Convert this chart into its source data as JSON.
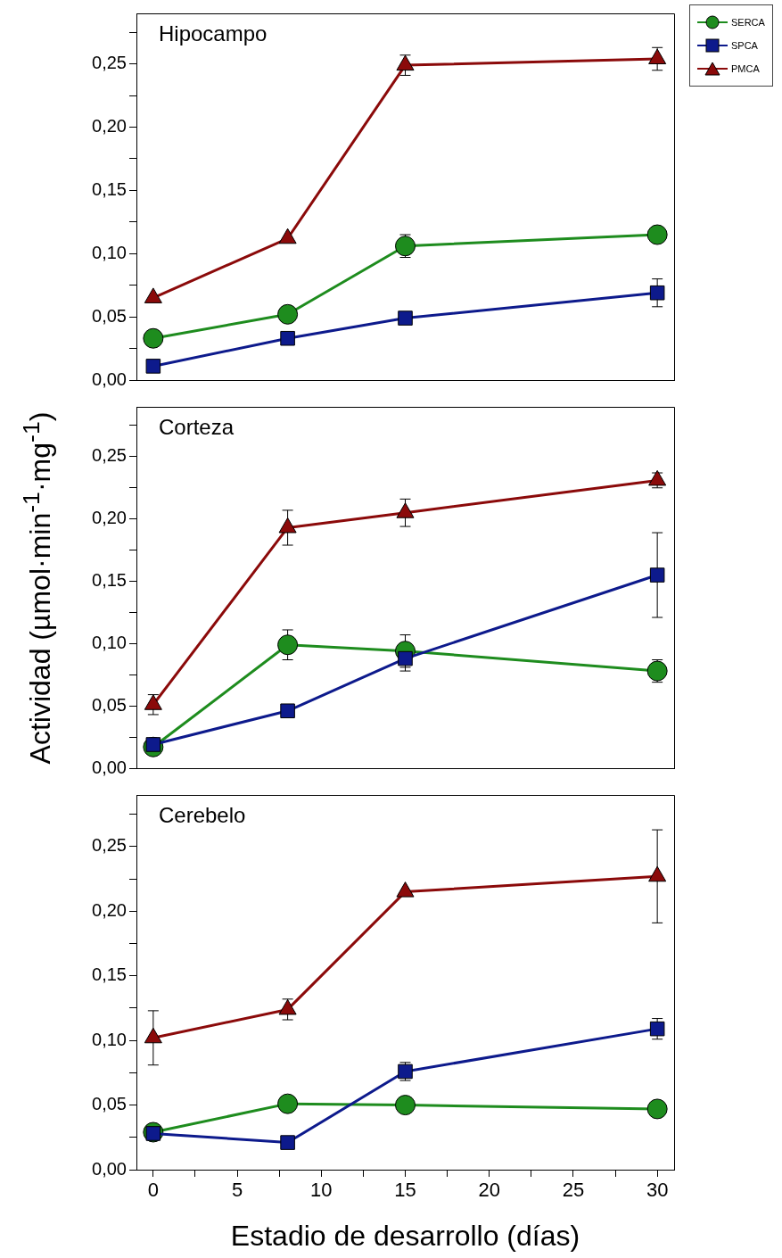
{
  "chart_data": [
    {
      "type": "line",
      "title": "Hipocampo",
      "x": [
        0,
        8,
        15,
        30
      ],
      "xlim": [
        -1,
        31
      ],
      "ylim": [
        0,
        0.29
      ],
      "yticks": [
        {
          "value": 0,
          "label": "0,00"
        },
        {
          "value": 0.025,
          "label": null
        },
        {
          "value": 0.05,
          "label": "0,05"
        },
        {
          "value": 0.075,
          "label": null
        },
        {
          "value": 0.1,
          "label": "0,10"
        },
        {
          "value": 0.125,
          "label": null
        },
        {
          "value": 0.15,
          "label": "0,15"
        },
        {
          "value": 0.175,
          "label": null
        },
        {
          "value": 0.2,
          "label": "0,20"
        },
        {
          "value": 0.225,
          "label": null
        },
        {
          "value": 0.25,
          "label": "0,25"
        },
        {
          "value": 0.275,
          "label": null
        }
      ],
      "tick_labels": "y",
      "legend": "top right",
      "line_style": "solid",
      "series": [
        {
          "name": "SERCA",
          "color": "#1e8c1e",
          "marker": "circle",
          "values": [
            0.033,
            0.052,
            0.106,
            0.115
          ],
          "errors": [
            null,
            null,
            0.009,
            null
          ]
        },
        {
          "name": "SPCA",
          "color": "#0d1a8c",
          "marker": "square",
          "values": [
            0.011,
            0.033,
            0.049,
            0.069
          ],
          "errors": [
            null,
            null,
            null,
            0.011
          ]
        },
        {
          "name": "PMCA",
          "color": "#8b0a0a",
          "marker": "triangle",
          "values": [
            0.065,
            0.112,
            0.249,
            0.254
          ],
          "errors": [
            null,
            null,
            0.008,
            0.009
          ]
        }
      ]
    },
    {
      "type": "line",
      "title": "Corteza",
      "ylabel": "Actividad (µmol·min$^{-1}$·mg$^{-1}$)",
      "x": [
        0,
        8,
        15,
        30
      ],
      "xlim": [
        -1,
        31
      ],
      "ylim": [
        0,
        0.29
      ],
      "yticks": [
        {
          "value": 0,
          "label": "0,00"
        },
        {
          "value": 0.025,
          "label": null
        },
        {
          "value": 0.05,
          "label": "0,05"
        },
        {
          "value": 0.075,
          "label": null
        },
        {
          "value": 0.1,
          "label": "0,10"
        },
        {
          "value": 0.125,
          "label": null
        },
        {
          "value": 0.15,
          "label": "0,15"
        },
        {
          "value": 0.175,
          "label": null
        },
        {
          "value": 0.2,
          "label": "0,20"
        },
        {
          "value": 0.225,
          "label": null
        },
        {
          "value": 0.25,
          "label": "0,25"
        },
        {
          "value": 0.275,
          "label": null
        }
      ],
      "tick_labels": "y",
      "line_style": "solid",
      "series": [
        {
          "color": "#1e8c1e",
          "marker": "circle",
          "values": [
            0.017,
            0.099,
            0.094,
            0.078
          ],
          "errors": [
            null,
            0.012,
            0.013,
            0.009
          ]
        },
        {
          "color": "#0d1a8c",
          "marker": "square",
          "values": [
            0.019,
            0.046,
            0.088,
            0.155
          ],
          "errors": [
            null,
            null,
            0.01,
            0.034
          ]
        },
        {
          "color": "#8b0a0a",
          "marker": "triangle",
          "values": [
            0.051,
            0.193,
            0.205,
            0.231
          ],
          "errors": [
            0.008,
            0.014,
            0.011,
            0.006
          ]
        }
      ]
    },
    {
      "type": "line",
      "title": "Cerebelo",
      "xlabel": "Estadio de desarrollo (días)",
      "x": [
        0,
        8,
        15,
        30
      ],
      "xlim": [
        -1,
        31
      ],
      "xticks": [
        {
          "value": 0,
          "label": "0"
        },
        {
          "value": 2.5,
          "label": null
        },
        {
          "value": 5,
          "label": "5"
        },
        {
          "value": 7.5,
          "label": null
        },
        {
          "value": 10,
          "label": "10"
        },
        {
          "value": 12.5,
          "label": null
        },
        {
          "value": 15,
          "label": "15"
        },
        {
          "value": 17.5,
          "label": null
        },
        {
          "value": 20,
          "label": "20"
        },
        {
          "value": 22.5,
          "label": null
        },
        {
          "value": 25,
          "label": "25"
        },
        {
          "value": 27.5,
          "label": null
        },
        {
          "value": 30,
          "label": "30"
        }
      ],
      "ylim": [
        0,
        0.29
      ],
      "yticks": [
        {
          "value": 0,
          "label": "0,00"
        },
        {
          "value": 0.025,
          "label": null
        },
        {
          "value": 0.05,
          "label": "0,05"
        },
        {
          "value": 0.075,
          "label": null
        },
        {
          "value": 0.1,
          "label": "0,10"
        },
        {
          "value": 0.125,
          "label": null
        },
        {
          "value": 0.15,
          "label": "0,15"
        },
        {
          "value": 0.175,
          "label": null
        },
        {
          "value": 0.2,
          "label": "0,20"
        },
        {
          "value": 0.225,
          "label": null
        },
        {
          "value": 0.25,
          "label": "0,25"
        },
        {
          "value": 0.275,
          "label": null
        }
      ],
      "line_style": "solid",
      "series": [
        {
          "color": "#1e8c1e",
          "marker": "circle",
          "values": [
            0.029,
            0.051,
            0.05,
            0.047
          ],
          "errors": [
            null,
            null,
            null,
            null
          ]
        },
        {
          "color": "#0d1a8c",
          "marker": "square",
          "values": [
            0.028,
            0.021,
            0.076,
            0.109
          ],
          "errors": [
            null,
            null,
            0.007,
            0.008
          ]
        },
        {
          "color": "#8b0a0a",
          "marker": "triangle",
          "values": [
            0.102,
            0.124,
            0.215,
            0.227
          ],
          "errors": [
            0.021,
            0.008,
            null,
            0.036
          ]
        }
      ]
    }
  ]
}
